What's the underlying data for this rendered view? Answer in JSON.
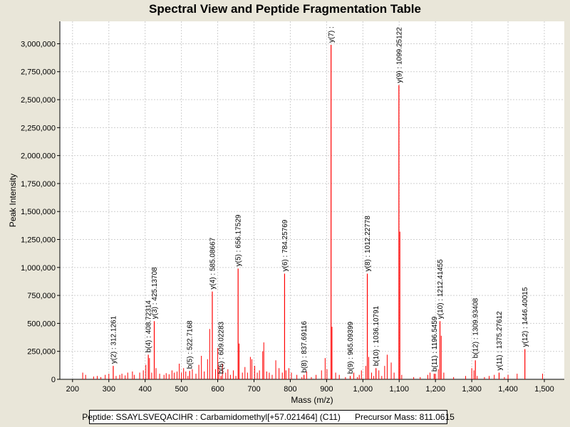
{
  "chart_data": {
    "type": "bar",
    "title": "Spectral View and Peptide Fragmentation Table",
    "xlabel": "Mass (m/z)",
    "ylabel": "Peak Intensity",
    "xlim": [
      165,
      1555
    ],
    "ylim": [
      0,
      3200000
    ],
    "x_ticks": [
      200,
      300,
      400,
      500,
      600,
      700,
      800,
      900,
      1000,
      1100,
      1200,
      1300,
      1400,
      1500
    ],
    "x_tick_labels": [
      "200",
      "300",
      "400",
      "500",
      "600",
      "700",
      "800",
      "900",
      "1,000",
      "1,100",
      "1,200",
      "1,300",
      "1,400",
      "1,500"
    ],
    "y_ticks": [
      0,
      250000,
      500000,
      750000,
      1000000,
      1250000,
      1500000,
      1750000,
      2000000,
      2250000,
      2500000,
      2750000,
      3000000
    ],
    "y_tick_labels": [
      "0",
      "250,000",
      "500,000",
      "750,000",
      "1,000,000",
      "1,250,000",
      "1,500,000",
      "1,750,000",
      "2,000,000",
      "2,250,000",
      "2,500,000",
      "2,750,000",
      "3,000,000"
    ],
    "grid": true,
    "peak_color": "#ff0000",
    "annotated_peaks": [
      {
        "mz": 312.1261,
        "intensity": 120000,
        "label": "y(2) : 312.1261"
      },
      {
        "mz": 408.72314,
        "intensity": 220000,
        "label": "b(4) : 408.72314"
      },
      {
        "mz": 425.13708,
        "intensity": 520000,
        "label": "y(3) : 425.13708"
      },
      {
        "mz": 522.7168,
        "intensity": 75000,
        "label": "b(5) : 522.7168"
      },
      {
        "mz": 585.08667,
        "intensity": 785000,
        "label": "y(4) : 585.08667"
      },
      {
        "mz": 609.02283,
        "intensity": 30000,
        "label": "b(6) : 609.02283"
      },
      {
        "mz": 656.17529,
        "intensity": 990000,
        "label": "y(5) : 656.17529"
      },
      {
        "mz": 784.25769,
        "intensity": 945000,
        "label": "y(6) : 784.25769"
      },
      {
        "mz": 837.69116,
        "intensity": 40000,
        "label": "b(8) : 837.69116"
      },
      {
        "mz": 912.3,
        "intensity": 2990000,
        "label": "y(7) :"
      },
      {
        "mz": 965.09399,
        "intensity": 30000,
        "label": "b(9) : 965.09399"
      },
      {
        "mz": 1012.22778,
        "intensity": 945000,
        "label": "y(8) : 1012.22778"
      },
      {
        "mz": 1036.10791,
        "intensity": 100000,
        "label": "b(10) : 1036.10791"
      },
      {
        "mz": 1099.25122,
        "intensity": 2630000,
        "label": "y(9) : 1099.25122"
      },
      {
        "mz": 1196.5459,
        "intensity": 50000,
        "label": "b(11) : 1196.5459"
      },
      {
        "mz": 1212.41455,
        "intensity": 520000,
        "label": "y(10) : 1212.41455"
      },
      {
        "mz": 1309.93408,
        "intensity": 170000,
        "label": "b(12) : 1309.93408"
      },
      {
        "mz": 1375.27612,
        "intensity": 60000,
        "label": "y(11) : 1375.27612"
      },
      {
        "mz": 1446.40015,
        "intensity": 270000,
        "label": "y(12) : 1446.40015"
      }
    ],
    "other_peaks": [
      [
        228,
        60000
      ],
      [
        236,
        40000
      ],
      [
        258,
        25000
      ],
      [
        268,
        30000
      ],
      [
        278,
        20000
      ],
      [
        290,
        40000
      ],
      [
        300,
        50000
      ],
      [
        320,
        30000
      ],
      [
        330,
        40000
      ],
      [
        336,
        50000
      ],
      [
        345,
        35000
      ],
      [
        352,
        60000
      ],
      [
        365,
        70000
      ],
      [
        370,
        40000
      ],
      [
        385,
        60000
      ],
      [
        395,
        80000
      ],
      [
        402,
        130000
      ],
      [
        412,
        190000
      ],
      [
        418,
        60000
      ],
      [
        430,
        100000
      ],
      [
        440,
        50000
      ],
      [
        452,
        40000
      ],
      [
        458,
        55000
      ],
      [
        466,
        45000
      ],
      [
        474,
        80000
      ],
      [
        480,
        60000
      ],
      [
        488,
        70000
      ],
      [
        494,
        140000
      ],
      [
        500,
        60000
      ],
      [
        506,
        100000
      ],
      [
        512,
        70000
      ],
      [
        518,
        30000
      ],
      [
        530,
        90000
      ],
      [
        540,
        50000
      ],
      [
        548,
        130000
      ],
      [
        555,
        210000
      ],
      [
        563,
        70000
      ],
      [
        572,
        180000
      ],
      [
        578,
        450000
      ],
      [
        594,
        90000
      ],
      [
        600,
        280000
      ],
      [
        603,
        120000
      ],
      [
        613,
        140000
      ],
      [
        622,
        60000
      ],
      [
        628,
        90000
      ],
      [
        635,
        40000
      ],
      [
        643,
        80000
      ],
      [
        650,
        30000
      ],
      [
        659,
        320000
      ],
      [
        668,
        60000
      ],
      [
        675,
        110000
      ],
      [
        682,
        60000
      ],
      [
        690,
        200000
      ],
      [
        694,
        180000
      ],
      [
        702,
        120000
      ],
      [
        709,
        60000
      ],
      [
        715,
        80000
      ],
      [
        724,
        250000
      ],
      [
        727,
        330000
      ],
      [
        735,
        70000
      ],
      [
        742,
        60000
      ],
      [
        750,
        40000
      ],
      [
        760,
        170000
      ],
      [
        769,
        100000
      ],
      [
        778,
        60000
      ],
      [
        788,
        80000
      ],
      [
        796,
        100000
      ],
      [
        803,
        60000
      ],
      [
        818,
        40000
      ],
      [
        832,
        20000
      ],
      [
        845,
        70000
      ],
      [
        858,
        20000
      ],
      [
        871,
        40000
      ],
      [
        886,
        80000
      ],
      [
        896,
        190000
      ],
      [
        901,
        90000
      ],
      [
        915,
        470000
      ],
      [
        925,
        60000
      ],
      [
        935,
        40000
      ],
      [
        952,
        20000
      ],
      [
        975,
        60000
      ],
      [
        985,
        20000
      ],
      [
        990,
        40000
      ],
      [
        996,
        80000
      ],
      [
        1008,
        120000
      ],
      [
        1016,
        200000
      ],
      [
        1024,
        60000
      ],
      [
        1030,
        30000
      ],
      [
        1044,
        80000
      ],
      [
        1052,
        30000
      ],
      [
        1060,
        120000
      ],
      [
        1067,
        220000
      ],
      [
        1078,
        150000
      ],
      [
        1086,
        60000
      ],
      [
        1102,
        1320000
      ],
      [
        1107,
        40000
      ],
      [
        1140,
        20000
      ],
      [
        1158,
        20000
      ],
      [
        1179,
        40000
      ],
      [
        1185,
        60000
      ],
      [
        1200,
        50000
      ],
      [
        1208,
        90000
      ],
      [
        1216,
        390000
      ],
      [
        1223,
        60000
      ],
      [
        1250,
        20000
      ],
      [
        1283,
        30000
      ],
      [
        1300,
        100000
      ],
      [
        1306,
        80000
      ],
      [
        1315,
        30000
      ],
      [
        1335,
        20000
      ],
      [
        1348,
        30000
      ],
      [
        1362,
        40000
      ],
      [
        1390,
        20000
      ],
      [
        1400,
        40000
      ],
      [
        1425,
        50000
      ],
      [
        1495,
        50000
      ]
    ]
  },
  "footer": {
    "peptide_label": "Peptide: SSAYLSVEQACIHR : Carbamidomethyl[+57.021464] (C11)",
    "precursor_label": "Precursor Mass: 811.0615"
  }
}
